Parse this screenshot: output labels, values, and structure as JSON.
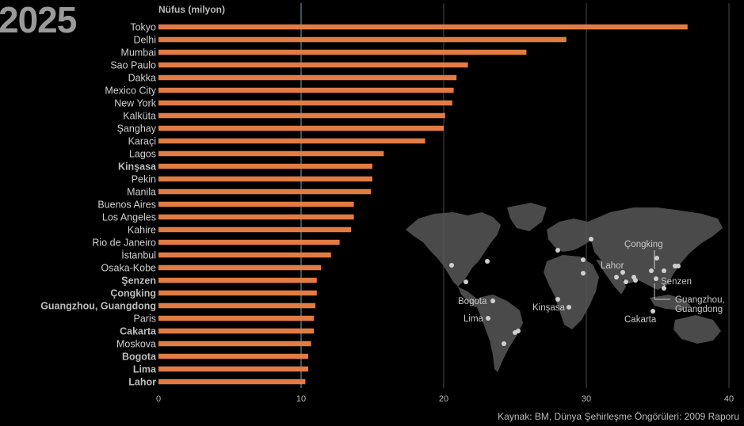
{
  "header": {
    "year": "2025"
  },
  "chart_data": {
    "type": "bar",
    "orientation": "horizontal",
    "ylabel": "Nüfus (milyon)",
    "source": "Kaynak: BM, Dünya Şehirleşme Öngörüleri: 2009 Raporu",
    "xlim": [
      0,
      40
    ],
    "xticks": [
      0,
      10,
      20,
      30,
      40
    ],
    "bar_color": "#e27c44",
    "reference_line": 10,
    "categories": [
      "Tokyo",
      "Delhi",
      "Mumbai",
      "Sao Paulo",
      "Dakka",
      "Mexico City",
      "New York",
      "Kalküta",
      "Şanghay",
      "Karaçi",
      "Lagos",
      "Kinşasa",
      "Pekin",
      "Manila",
      "Buenos Aires",
      "Los Angeles",
      "Kahire",
      "Rio de Janeiro",
      "İstanbul",
      "Osaka-Kobe",
      "Şenzen",
      "Çongking",
      "Guangzhou, Guangdong",
      "Paris",
      "Cakarta",
      "Moskova",
      "Bogota",
      "Lima",
      "Lahor"
    ],
    "values": [
      37.1,
      28.6,
      25.8,
      21.7,
      20.9,
      20.7,
      20.6,
      20.1,
      20.0,
      18.7,
      15.8,
      15.0,
      15.0,
      14.9,
      13.7,
      13.7,
      13.5,
      12.7,
      12.1,
      11.4,
      11.1,
      11.1,
      11.0,
      10.9,
      10.9,
      10.7,
      10.5,
      10.5,
      10.3
    ],
    "highlighted": [
      "Kinşasa",
      "Şenzen",
      "Çongking",
      "Guangzhou, Guangdong",
      "Cakarta",
      "Bogota",
      "Lima",
      "Lahor"
    ],
    "map_labels": [
      "Çongking",
      "Lahor",
      "Şenzen",
      "Guangzhou,",
      "Guangdong",
      "Bogota",
      "Kinşasa",
      "Lima",
      "Cakarta"
    ]
  }
}
